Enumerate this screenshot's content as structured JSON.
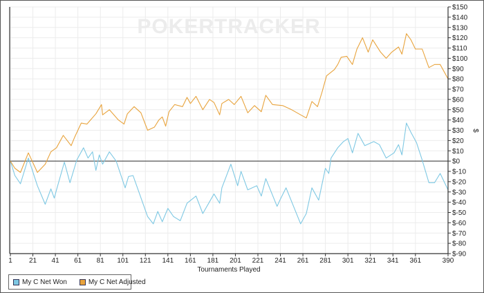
{
  "chart_data": {
    "type": "line",
    "title": "",
    "watermark": "POKERTRACKER",
    "xlabel": "Tournaments Played",
    "ylabel": "$",
    "xlim": [
      1,
      390
    ],
    "ylim": [
      -90,
      150
    ],
    "x_ticks": [
      1,
      21,
      41,
      61,
      81,
      101,
      121,
      141,
      161,
      181,
      201,
      221,
      241,
      261,
      281,
      301,
      321,
      341,
      361,
      390
    ],
    "y_ticks": [
      150,
      140,
      130,
      120,
      110,
      100,
      90,
      80,
      70,
      60,
      50,
      40,
      30,
      20,
      10,
      0,
      -10,
      -20,
      -30,
      -40,
      -50,
      -60,
      -70,
      -80,
      -90
    ],
    "y_tick_labels": [
      "$150",
      "$140",
      "$130",
      "$120",
      "$110",
      "$100",
      "$90",
      "$80",
      "$70",
      "$60",
      "$50",
      "$40",
      "$30",
      "$20",
      "$10",
      "$0",
      "$-10",
      "$-20",
      "$-30",
      "$-40",
      "$-50",
      "$-60",
      "$-70",
      "$-80",
      "$-90"
    ],
    "grid": true,
    "legend_position": "bottom-left",
    "series": [
      {
        "name": "My C Net Won",
        "color": "#7ec8e3",
        "x": [
          1,
          5,
          10,
          17,
          25,
          32,
          37,
          40,
          42,
          49,
          54,
          60,
          66,
          70,
          74,
          77,
          80,
          83,
          89,
          95,
          103,
          106,
          110,
          123,
          128,
          132,
          136,
          141,
          146,
          152,
          158,
          166,
          172,
          182,
          187,
          189,
          197,
          203,
          206,
          212,
          220,
          224,
          228,
          238,
          241,
          246,
          259,
          264,
          269,
          275,
          281,
          284,
          286,
          292,
          297,
          301,
          305,
          310,
          316,
          324,
          329,
          335,
          342,
          346,
          349,
          353,
          357,
          362,
          367,
          373,
          378,
          383,
          390
        ],
        "y": [
          0,
          -14,
          -22,
          3,
          -24,
          -42,
          -27,
          -36,
          -28,
          -1,
          -21,
          1,
          13,
          3,
          9,
          -9,
          6,
          -3,
          9,
          0,
          -26,
          -15,
          -14,
          -54,
          -61,
          -49,
          -59,
          -46,
          -54,
          -58,
          -41,
          -34,
          -51,
          -32,
          -41,
          -26,
          -3,
          -24,
          -10,
          -28,
          -24,
          -34,
          -17,
          -44,
          -37,
          -26,
          -61,
          -51,
          -26,
          -38,
          -7,
          -12,
          3,
          13,
          19,
          22,
          8,
          27,
          15,
          19,
          16,
          3,
          8,
          16,
          6,
          37,
          28,
          18,
          1,
          -21,
          -21,
          -12,
          -28
        ]
      },
      {
        "name": "My C Net Adjusted",
        "color": "#e8a33c",
        "x": [
          1,
          5,
          10,
          17,
          25,
          32,
          37,
          42,
          48,
          55,
          58,
          64,
          69,
          77,
          82,
          83,
          89,
          97,
          102,
          105,
          111,
          117,
          123,
          129,
          133,
          136,
          139,
          142,
          147,
          154,
          158,
          161,
          166,
          172,
          178,
          182,
          187,
          189,
          195,
          200,
          206,
          212,
          218,
          224,
          228,
          234,
          243,
          251,
          259,
          264,
          269,
          274,
          278,
          282,
          289,
          292,
          295,
          300,
          305,
          309,
          314,
          319,
          323,
          330,
          335,
          340,
          346,
          349,
          353,
          357,
          361,
          367,
          373,
          378,
          383,
          390
        ],
        "y": [
          0,
          -7,
          -11,
          8,
          -11,
          -3,
          9,
          13,
          25,
          15,
          23,
          37,
          36,
          46,
          55,
          45,
          50,
          40,
          36,
          46,
          53,
          47,
          30,
          33,
          40,
          43,
          34,
          48,
          55,
          53,
          62,
          56,
          63,
          50,
          60,
          57,
          45,
          56,
          60,
          55,
          63,
          47,
          54,
          48,
          64,
          55,
          54,
          50,
          45,
          42,
          58,
          53,
          67,
          83,
          89,
          94,
          101,
          102,
          94,
          109,
          120,
          106,
          118,
          106,
          100,
          106,
          111,
          104,
          124,
          118,
          109,
          109,
          91,
          94,
          94,
          80
        ]
      }
    ]
  }
}
